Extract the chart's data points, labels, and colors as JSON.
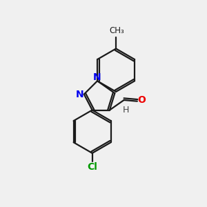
{
  "background_color": "#f0f0f0",
  "bond_color": "#1a1a1a",
  "N_color": "#0000ee",
  "O_color": "#ee0000",
  "Cl_color": "#009900",
  "H_color": "#444444",
  "line_width": 1.6,
  "font_size": 10,
  "figsize": [
    3.0,
    3.0
  ],
  "dpi": 100,
  "xlim": [
    0,
    10
  ],
  "ylim": [
    0,
    10
  ]
}
